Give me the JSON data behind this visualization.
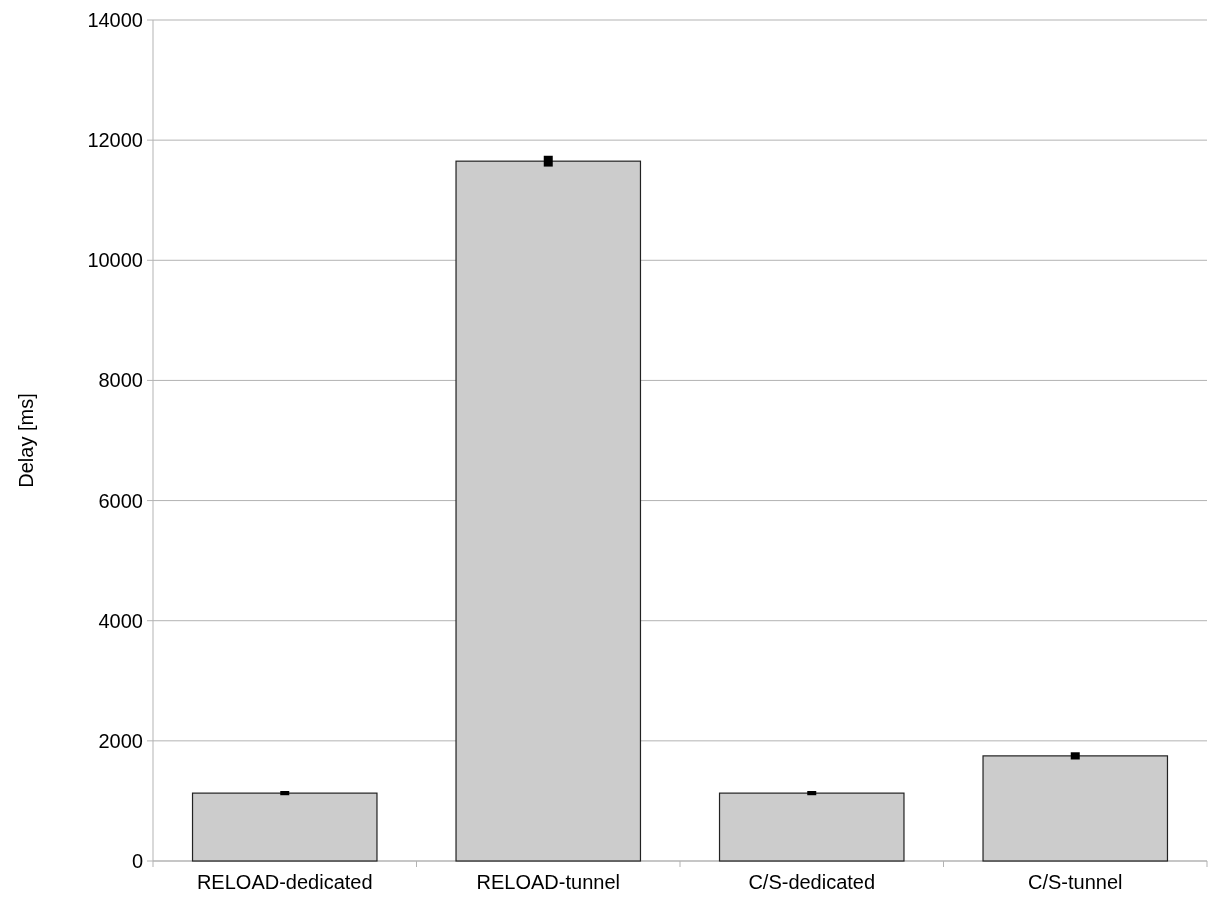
{
  "chart_data": {
    "type": "bar",
    "ylabel": "Delay [ms]",
    "categories": [
      "RELOAD-dedicated",
      "RELOAD-tunnel",
      "C/S-dedicated",
      "C/S-tunnel"
    ],
    "values": [
      1130,
      11650,
      1130,
      1750
    ],
    "errors": [
      35,
      90,
      35,
      60
    ],
    "color": "#cccccc",
    "ylim": [
      0,
      14000
    ],
    "yticks": [
      0,
      2000,
      4000,
      6000,
      8000,
      10000,
      12000,
      14000
    ],
    "grid": "y"
  }
}
